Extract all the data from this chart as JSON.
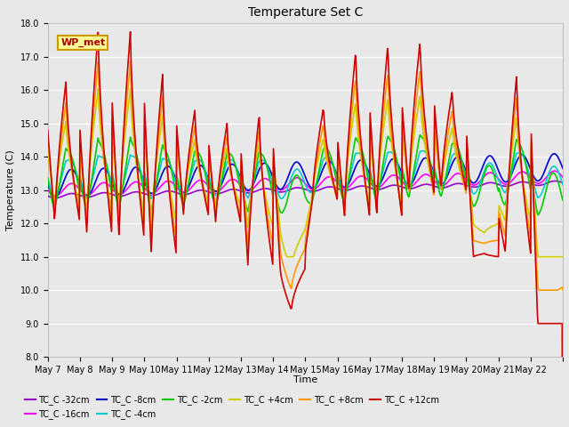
{
  "title": "Temperature Set C",
  "xlabel": "Time",
  "ylabel": "Temperature (C)",
  "ylim": [
    8.0,
    18.0
  ],
  "yticks": [
    8.0,
    9.0,
    10.0,
    11.0,
    12.0,
    13.0,
    14.0,
    15.0,
    16.0,
    17.0,
    18.0
  ],
  "n_days": 16,
  "bg_color": "#e8e8e8",
  "plot_bg_color": "#e8e8e8",
  "grid_color": "white",
  "series": [
    {
      "label": "TC_C -32cm",
      "color": "#9900cc",
      "lw": 1.2
    },
    {
      "label": "TC_C -16cm",
      "color": "#ff00ff",
      "lw": 1.2
    },
    {
      "label": "TC_C -8cm",
      "color": "#0000cc",
      "lw": 1.2
    },
    {
      "label": "TC_C -4cm",
      "color": "#00cccc",
      "lw": 1.2
    },
    {
      "label": "TC_C -2cm",
      "color": "#00cc00",
      "lw": 1.2
    },
    {
      "label": "TC_C +4cm",
      "color": "#cccc00",
      "lw": 1.2
    },
    {
      "label": "TC_C +8cm",
      "color": "#ff9900",
      "lw": 1.2
    },
    {
      "label": "TC_C +12cm",
      "color": "#cc0000",
      "lw": 1.2
    }
  ],
  "wp_met_box_color": "#ffff99",
  "wp_met_text_color": "#aa0000",
  "wp_met_border_color": "#cc9900",
  "xtick_labels": [
    "May 7",
    "May 8",
    "May 9",
    "May 10",
    "May 11",
    "May 12",
    "May 13",
    "May 14",
    "May 15",
    "May 16",
    "May 17",
    "May 18",
    "May 19",
    "May 20",
    "May 21",
    "May 22"
  ],
  "peak_temps_red": [
    16.3,
    17.8,
    17.8,
    16.5,
    15.4,
    15.0,
    15.3,
    9.4,
    15.5,
    17.2,
    17.4,
    17.5,
    16.0,
    11.1,
    16.5,
    9.0
  ],
  "trough_temps_red": [
    12.0,
    11.6,
    11.5,
    11.0,
    12.2,
    12.0,
    10.7,
    10.65,
    12.7,
    12.2,
    12.2,
    12.9,
    13.0,
    11.0,
    11.1,
    9.0
  ],
  "base_trend_red": 13.0,
  "title_fontsize": 10,
  "label_fontsize": 8,
  "tick_fontsize": 7,
  "legend_fontsize": 7
}
